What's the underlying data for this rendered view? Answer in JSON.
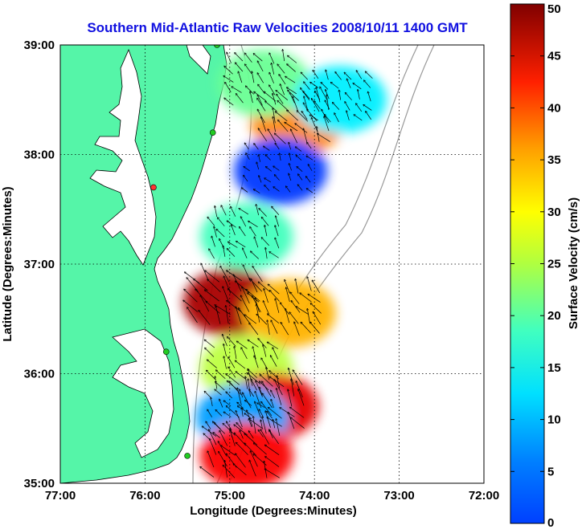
{
  "title": "Southern Mid-Atlantic Raw Velocities 2008/10/11 1400 GMT",
  "map": {
    "xlabel": "Longitude (Degrees:Minutes)",
    "ylabel": "Latitude (Degrees:Minutes)",
    "xlim": [
      -77,
      -72
    ],
    "ylim": [
      35,
      39
    ],
    "xticks": [
      "77:00",
      "76:00",
      "75:00",
      "74:00",
      "73:00",
      "72:00"
    ],
    "yticks": [
      "39:00",
      "38:00",
      "37:00",
      "36:00",
      "35:00"
    ],
    "grid": "dotted",
    "land_color": "#55f5a8",
    "water_color": "#ffffff",
    "bathymetry_color": "#999999"
  },
  "colorbar": {
    "label": "Surface Velocity (cm/s)",
    "range": [
      0,
      50
    ],
    "ticks": [
      "0",
      "5",
      "10",
      "15",
      "20",
      "25",
      "30",
      "35",
      "40",
      "45",
      "50"
    ],
    "colormap": "jet"
  },
  "chart_data": {
    "type": "heatmap",
    "title": "Southern Mid-Atlantic Raw Velocities 2008/10/11 1400 GMT",
    "xlabel": "Longitude (Degrees:Minutes)",
    "ylabel": "Latitude (Degrees:Minutes)",
    "units": "cm/s",
    "regions": [
      {
        "lon": -74.2,
        "lat": 38.3,
        "speed": 37
      },
      {
        "lon": -74.6,
        "lat": 38.65,
        "speed": 24
      },
      {
        "lon": -73.7,
        "lat": 38.5,
        "speed": 18
      },
      {
        "lon": -74.4,
        "lat": 37.85,
        "speed": 9
      },
      {
        "lon": -74.8,
        "lat": 37.25,
        "speed": 22
      },
      {
        "lon": -75.0,
        "lat": 36.65,
        "speed": 48
      },
      {
        "lon": -74.3,
        "lat": 36.55,
        "speed": 35
      },
      {
        "lon": -74.8,
        "lat": 36.05,
        "speed": 28
      },
      {
        "lon": -74.5,
        "lat": 35.7,
        "speed": 45
      },
      {
        "lon": -74.85,
        "lat": 35.6,
        "speed": 14
      },
      {
        "lon": -74.8,
        "lat": 35.25,
        "speed": 44
      }
    ],
    "radar_sites": [
      {
        "lon": -75.9,
        "lat": 37.7,
        "color": "#ff3333"
      },
      {
        "lon": -75.15,
        "lat": 39.0,
        "color": "#22cc22"
      },
      {
        "lon": -75.2,
        "lat": 38.2,
        "color": "#22cc22"
      },
      {
        "lon": -75.75,
        "lat": 36.2,
        "color": "#22cc22"
      },
      {
        "lon": -75.5,
        "lat": 35.25,
        "color": "#22cc22"
      }
    ]
  }
}
